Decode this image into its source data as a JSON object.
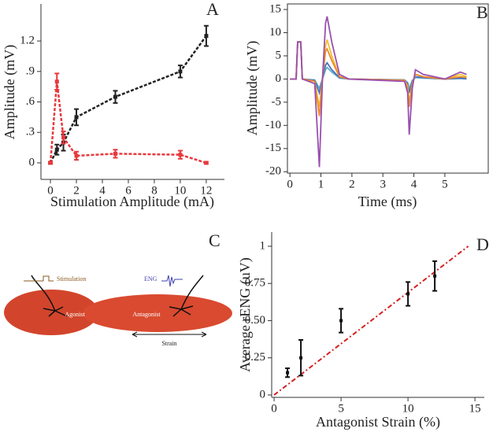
{
  "chart_data": [
    {
      "type": "line",
      "label": "A",
      "xlabel": "Stimulation Amplitude (mA)",
      "ylabel": "Amplitude (mV)",
      "x": [
        0,
        0.5,
        1,
        2,
        5,
        10,
        12
      ],
      "series": [
        {
          "color": "#222222",
          "values": [
            0,
            0.13,
            0.2,
            0.45,
            0.65,
            0.9,
            1.25
          ],
          "errors": [
            0.01,
            0.05,
            0.08,
            0.08,
            0.06,
            0.06,
            0.1
          ]
        },
        {
          "color": "#e8383d",
          "values": [
            0,
            0.8,
            0.25,
            0.07,
            0.09,
            0.08,
            0
          ],
          "errors": [
            0.01,
            0.08,
            0.06,
            0.04,
            0.04,
            0.04,
            0.01
          ]
        }
      ],
      "dashed": true,
      "markers": true,
      "frame": false,
      "xlim": [
        -0.73,
        13.4
      ],
      "xticks": [
        0,
        2,
        4,
        6,
        8,
        10,
        12
      ],
      "ylim": [
        -0.163,
        1.565
      ],
      "yticks": [
        0,
        {
          "value": 0.3,
          "label": ".3"
        },
        {
          "value": 0.6,
          "label": ".6"
        },
        {
          "value": 0.9,
          "label": ".9"
        },
        1.2
      ]
    },
    {
      "type": "line",
      "label": "B",
      "xlabel": "Time (ms)",
      "ylabel": "Amplitude (mV)",
      "x": [
        0,
        0.2,
        0.25,
        0.35,
        0.4,
        0.8,
        0.95,
        1.05,
        1.15,
        1.2,
        1.35,
        1.6,
        1.9,
        3.7,
        3.8,
        3.85,
        3.95,
        4.05,
        4.3,
        5.0,
        5.5,
        5.7
      ],
      "series": [
        {
          "color": "#5fb0c8",
          "values": [
            0,
            0,
            8,
            8,
            0,
            -0.2,
            -2,
            0,
            2,
            2.5,
            1.5,
            0.2,
            0,
            -0.2,
            -0.8,
            -2,
            -0.3,
            0.3,
            0.2,
            0,
            0.1,
            0
          ]
        },
        {
          "color": "#4a6fc0",
          "values": [
            0,
            0,
            8,
            8,
            0,
            -0.3,
            -3,
            0,
            3,
            3.5,
            2,
            0.3,
            0,
            -0.2,
            -1,
            -3,
            -0.5,
            0.5,
            0.3,
            0,
            0.2,
            0.1
          ]
        },
        {
          "color": "#f0c030",
          "values": [
            0,
            0,
            8,
            8,
            0,
            -0.5,
            -6,
            0,
            7,
            8.5,
            5,
            0.5,
            0,
            -0.3,
            -1.5,
            -5,
            -1,
            1,
            0.5,
            0,
            1,
            0.5
          ]
        },
        {
          "color": "#ee8a2a",
          "values": [
            0,
            0,
            8,
            8,
            0,
            -0.5,
            -8,
            0,
            6,
            6.5,
            4,
            0.5,
            0,
            -0.3,
            -2,
            -6,
            -1,
            1,
            0.5,
            0,
            0.5,
            0.3
          ]
        },
        {
          "color": "#9a4fb0",
          "values": [
            0,
            0,
            8,
            8,
            0,
            -1,
            -19,
            0,
            12,
            13.5,
            8,
            1,
            0,
            -0.5,
            -3,
            -12,
            -2,
            2,
            1,
            0,
            1.5,
            1
          ]
        }
      ],
      "dashed": false,
      "markers": false,
      "frame": true,
      "xlim": [
        -0.08,
        6.4
      ],
      "xticks": [
        0,
        1,
        2,
        3,
        4,
        5
      ],
      "ylim": [
        -20.3,
        16.2
      ],
      "yticks": [
        -20,
        -15,
        -10,
        -5,
        0,
        5,
        10,
        15
      ]
    },
    {
      "type": "scatter",
      "label": "D",
      "xlabel": "Antagonist Strain (%)",
      "ylabel": "Average rENG (uV)",
      "x": [
        1,
        2,
        5,
        10,
        12
      ],
      "series": [
        {
          "color": "#111111",
          "values": [
            0.15,
            0.25,
            0.5,
            0.68,
            0.8
          ],
          "errors": [
            0.03,
            0.12,
            0.08,
            0.08,
            0.1
          ]
        }
      ],
      "trendline": {
        "x": [
          0,
          14.5
        ],
        "y": [
          0,
          1
        ],
        "color": "#d42020"
      },
      "frame": false,
      "xlim": [
        -0.18,
        15.7
      ],
      "xticks": [
        0,
        5,
        10,
        15
      ],
      "ylim": [
        -0.016,
        1.095
      ],
      "yticks": [
        0,
        0.25,
        {
          "value": 0.5,
          "label": "0.50"
        },
        0.75,
        1
      ]
    }
  ],
  "diagram": {
    "label": "C",
    "stimulation": "Stimulation",
    "eng": "ENG",
    "agonist": "Agonist",
    "antagonist": "Antagonist",
    "strain": "Strain"
  }
}
